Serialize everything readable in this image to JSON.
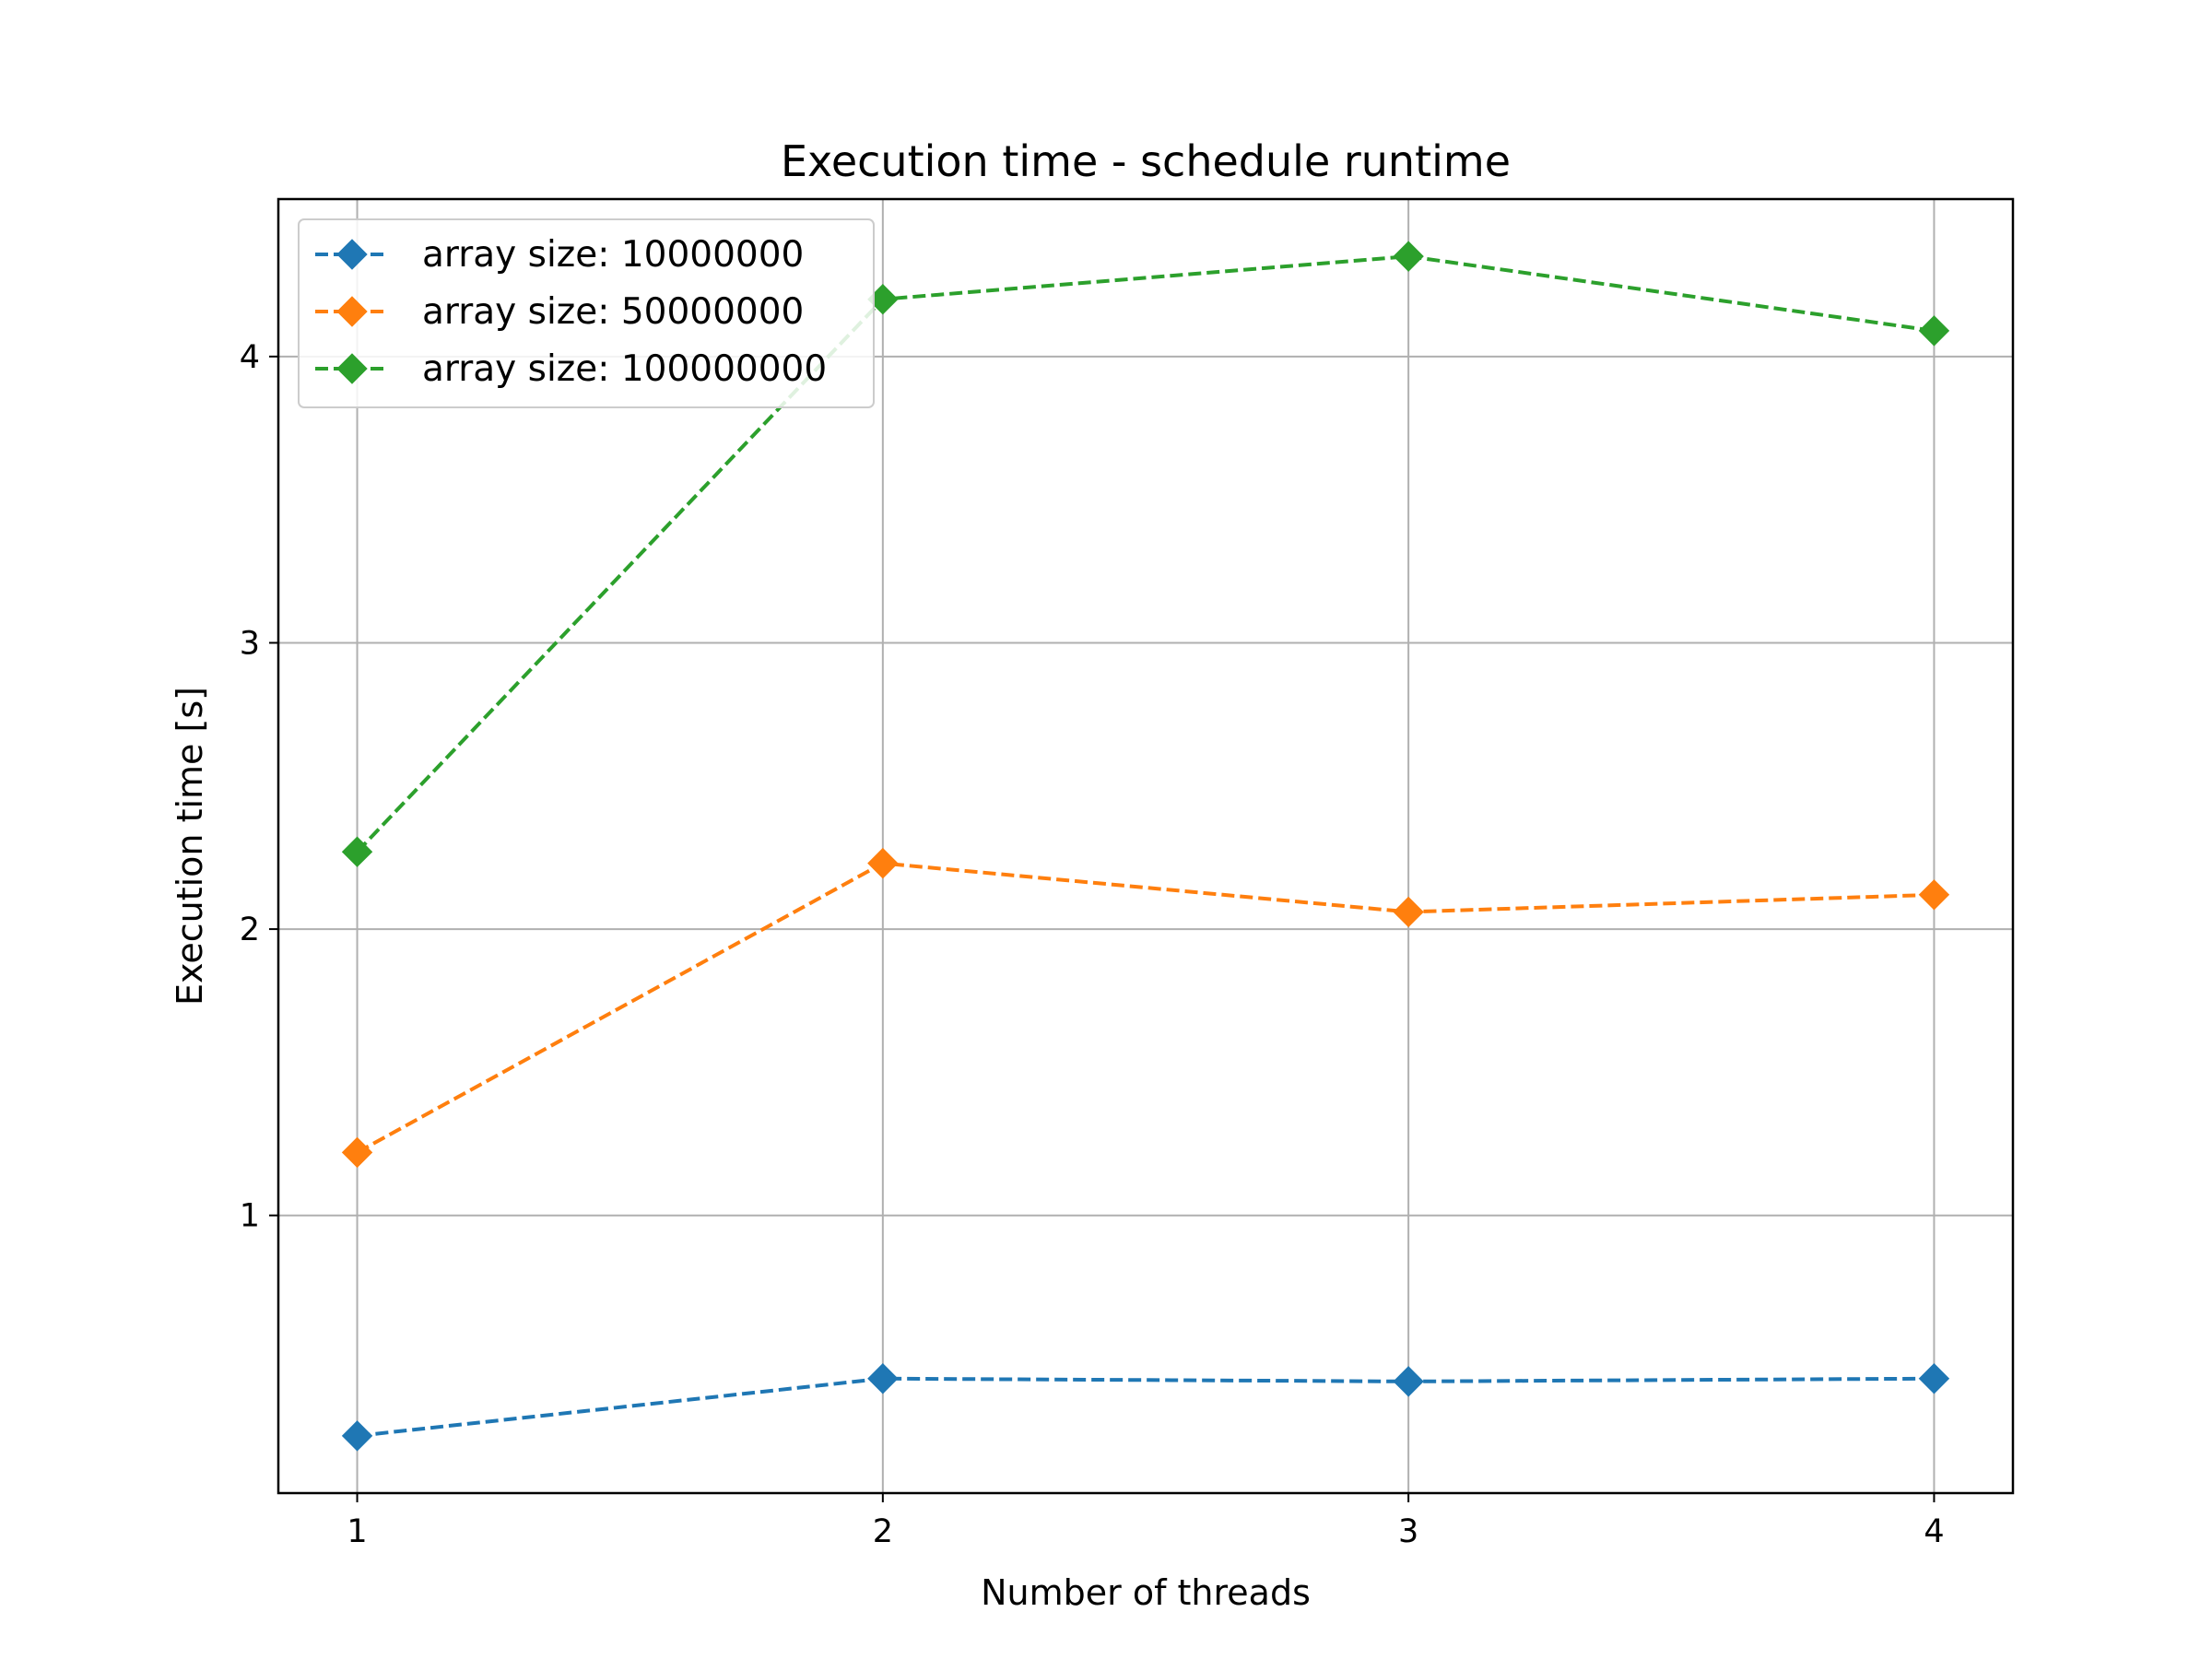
{
  "chart_data": {
    "type": "line",
    "title": "Execution time - schedule runtime",
    "xlabel": "Number of threads",
    "ylabel": "Execution time [s]",
    "x": [
      1,
      2,
      3,
      4
    ],
    "xticks": [
      1,
      2,
      3,
      4
    ],
    "yticks": [
      1,
      2,
      3,
      4
    ],
    "xlim": [
      0.85,
      4.15
    ],
    "ylim": [
      0.03,
      4.55
    ],
    "grid": true,
    "legend_position": "top-left",
    "line_style": "dashed",
    "marker": "diamond",
    "series": [
      {
        "name": "array size: 10000000",
        "color": "#1f77b4",
        "values": [
          0.23,
          0.43,
          0.42,
          0.43
        ]
      },
      {
        "name": "array size: 50000000",
        "color": "#ff7f0e",
        "values": [
          1.22,
          2.23,
          2.06,
          2.12
        ]
      },
      {
        "name": "array size: 100000000",
        "color": "#2ca02c",
        "values": [
          2.27,
          4.2,
          4.35,
          4.09
        ]
      }
    ]
  }
}
